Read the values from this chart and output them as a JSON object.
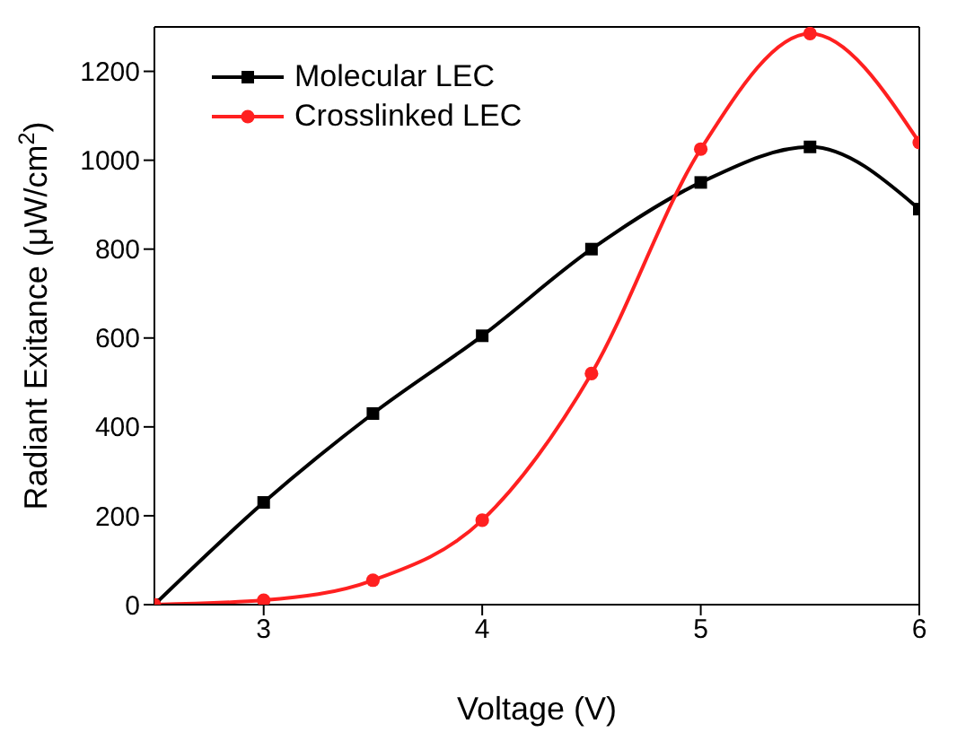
{
  "chart_data": {
    "type": "line",
    "xlabel": "Voltage (V)",
    "ylabel": "Radiant Exitance (μW/cm$^{2}$)",
    "x": [
      2.5,
      3,
      3.5,
      4,
      4.5,
      5,
      5.5,
      6
    ],
    "series": [
      {
        "name": "Molecular LEC",
        "color": "#000000",
        "marker": "square",
        "values": [
          0,
          230,
          430,
          605,
          800,
          950,
          1030,
          890
        ]
      },
      {
        "name": "Crosslinked LEC",
        "color": "#ff2020",
        "marker": "circle",
        "values": [
          0,
          10,
          55,
          190,
          520,
          1025,
          1285,
          1040
        ]
      }
    ],
    "xlim": [
      2.5,
      6
    ],
    "xticks": [
      3,
      4,
      5,
      6
    ],
    "ylim": [
      0,
      1300
    ],
    "yticks": [
      0,
      200,
      400,
      600,
      800,
      1000,
      1200
    ],
    "grid": false,
    "legend": "top left"
  }
}
